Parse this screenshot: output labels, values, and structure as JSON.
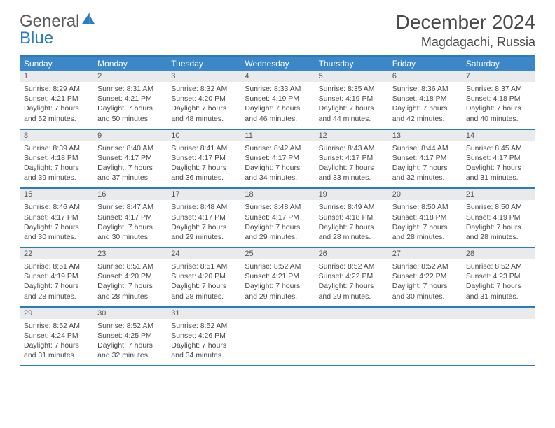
{
  "brand": {
    "word1": "General",
    "word2": "Blue"
  },
  "title": "December 2024",
  "location": "Magdagachi, Russia",
  "colors": {
    "accent": "#2b7bbf",
    "header_bg": "#3b87c8",
    "band_bg": "#e8eaec",
    "text": "#4a4a4a"
  },
  "dow": [
    "Sunday",
    "Monday",
    "Tuesday",
    "Wednesday",
    "Thursday",
    "Friday",
    "Saturday"
  ],
  "weeks": [
    [
      {
        "n": "1",
        "sr": "Sunrise: 8:29 AM",
        "ss": "Sunset: 4:21 PM",
        "dl": "Daylight: 7 hours and 52 minutes."
      },
      {
        "n": "2",
        "sr": "Sunrise: 8:31 AM",
        "ss": "Sunset: 4:21 PM",
        "dl": "Daylight: 7 hours and 50 minutes."
      },
      {
        "n": "3",
        "sr": "Sunrise: 8:32 AM",
        "ss": "Sunset: 4:20 PM",
        "dl": "Daylight: 7 hours and 48 minutes."
      },
      {
        "n": "4",
        "sr": "Sunrise: 8:33 AM",
        "ss": "Sunset: 4:19 PM",
        "dl": "Daylight: 7 hours and 46 minutes."
      },
      {
        "n": "5",
        "sr": "Sunrise: 8:35 AM",
        "ss": "Sunset: 4:19 PM",
        "dl": "Daylight: 7 hours and 44 minutes."
      },
      {
        "n": "6",
        "sr": "Sunrise: 8:36 AM",
        "ss": "Sunset: 4:18 PM",
        "dl": "Daylight: 7 hours and 42 minutes."
      },
      {
        "n": "7",
        "sr": "Sunrise: 8:37 AM",
        "ss": "Sunset: 4:18 PM",
        "dl": "Daylight: 7 hours and 40 minutes."
      }
    ],
    [
      {
        "n": "8",
        "sr": "Sunrise: 8:39 AM",
        "ss": "Sunset: 4:18 PM",
        "dl": "Daylight: 7 hours and 39 minutes."
      },
      {
        "n": "9",
        "sr": "Sunrise: 8:40 AM",
        "ss": "Sunset: 4:17 PM",
        "dl": "Daylight: 7 hours and 37 minutes."
      },
      {
        "n": "10",
        "sr": "Sunrise: 8:41 AM",
        "ss": "Sunset: 4:17 PM",
        "dl": "Daylight: 7 hours and 36 minutes."
      },
      {
        "n": "11",
        "sr": "Sunrise: 8:42 AM",
        "ss": "Sunset: 4:17 PM",
        "dl": "Daylight: 7 hours and 34 minutes."
      },
      {
        "n": "12",
        "sr": "Sunrise: 8:43 AM",
        "ss": "Sunset: 4:17 PM",
        "dl": "Daylight: 7 hours and 33 minutes."
      },
      {
        "n": "13",
        "sr": "Sunrise: 8:44 AM",
        "ss": "Sunset: 4:17 PM",
        "dl": "Daylight: 7 hours and 32 minutes."
      },
      {
        "n": "14",
        "sr": "Sunrise: 8:45 AM",
        "ss": "Sunset: 4:17 PM",
        "dl": "Daylight: 7 hours and 31 minutes."
      }
    ],
    [
      {
        "n": "15",
        "sr": "Sunrise: 8:46 AM",
        "ss": "Sunset: 4:17 PM",
        "dl": "Daylight: 7 hours and 30 minutes."
      },
      {
        "n": "16",
        "sr": "Sunrise: 8:47 AM",
        "ss": "Sunset: 4:17 PM",
        "dl": "Daylight: 7 hours and 30 minutes."
      },
      {
        "n": "17",
        "sr": "Sunrise: 8:48 AM",
        "ss": "Sunset: 4:17 PM",
        "dl": "Daylight: 7 hours and 29 minutes."
      },
      {
        "n": "18",
        "sr": "Sunrise: 8:48 AM",
        "ss": "Sunset: 4:17 PM",
        "dl": "Daylight: 7 hours and 29 minutes."
      },
      {
        "n": "19",
        "sr": "Sunrise: 8:49 AM",
        "ss": "Sunset: 4:18 PM",
        "dl": "Daylight: 7 hours and 28 minutes."
      },
      {
        "n": "20",
        "sr": "Sunrise: 8:50 AM",
        "ss": "Sunset: 4:18 PM",
        "dl": "Daylight: 7 hours and 28 minutes."
      },
      {
        "n": "21",
        "sr": "Sunrise: 8:50 AM",
        "ss": "Sunset: 4:19 PM",
        "dl": "Daylight: 7 hours and 28 minutes."
      }
    ],
    [
      {
        "n": "22",
        "sr": "Sunrise: 8:51 AM",
        "ss": "Sunset: 4:19 PM",
        "dl": "Daylight: 7 hours and 28 minutes."
      },
      {
        "n": "23",
        "sr": "Sunrise: 8:51 AM",
        "ss": "Sunset: 4:20 PM",
        "dl": "Daylight: 7 hours and 28 minutes."
      },
      {
        "n": "24",
        "sr": "Sunrise: 8:51 AM",
        "ss": "Sunset: 4:20 PM",
        "dl": "Daylight: 7 hours and 28 minutes."
      },
      {
        "n": "25",
        "sr": "Sunrise: 8:52 AM",
        "ss": "Sunset: 4:21 PM",
        "dl": "Daylight: 7 hours and 29 minutes."
      },
      {
        "n": "26",
        "sr": "Sunrise: 8:52 AM",
        "ss": "Sunset: 4:22 PM",
        "dl": "Daylight: 7 hours and 29 minutes."
      },
      {
        "n": "27",
        "sr": "Sunrise: 8:52 AM",
        "ss": "Sunset: 4:22 PM",
        "dl": "Daylight: 7 hours and 30 minutes."
      },
      {
        "n": "28",
        "sr": "Sunrise: 8:52 AM",
        "ss": "Sunset: 4:23 PM",
        "dl": "Daylight: 7 hours and 31 minutes."
      }
    ],
    [
      {
        "n": "29",
        "sr": "Sunrise: 8:52 AM",
        "ss": "Sunset: 4:24 PM",
        "dl": "Daylight: 7 hours and 31 minutes."
      },
      {
        "n": "30",
        "sr": "Sunrise: 8:52 AM",
        "ss": "Sunset: 4:25 PM",
        "dl": "Daylight: 7 hours and 32 minutes."
      },
      {
        "n": "31",
        "sr": "Sunrise: 8:52 AM",
        "ss": "Sunset: 4:26 PM",
        "dl": "Daylight: 7 hours and 34 minutes."
      },
      null,
      null,
      null,
      null
    ]
  ]
}
